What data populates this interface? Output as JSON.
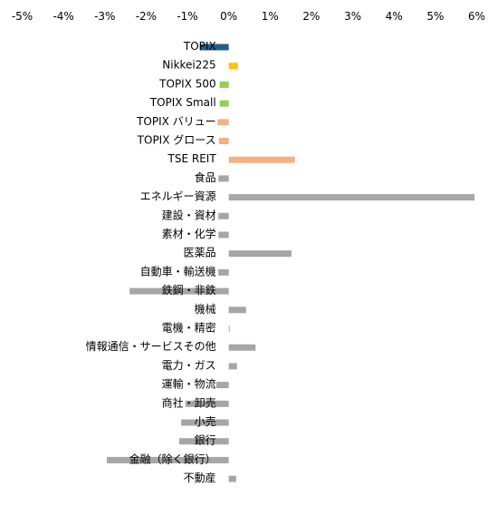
{
  "chart_data": {
    "type": "bar",
    "orientation": "horizontal",
    "title": "",
    "xlabel": "",
    "ylabel": "",
    "xlim": [
      -5,
      6
    ],
    "x_ticks": [
      "-5%",
      "-4%",
      "-3%",
      "-2%",
      "-1%",
      "0%",
      "1%",
      "2%",
      "3%",
      "4%",
      "5%",
      "6%"
    ],
    "x_tick_values": [
      -5,
      -4,
      -3,
      -2,
      -1,
      0,
      1,
      2,
      3,
      4,
      5,
      6
    ],
    "x_axis_position": "top",
    "grid": false,
    "legend": "none",
    "categories": [
      "TOPIX",
      "Nikkei225",
      "TOPIX 500",
      "TOPIX Small",
      "TOPIX バリュー",
      "TOPIX グロース",
      "TSE REIT",
      "食品",
      "エネルギー資源",
      "建設・資材",
      "素材・化学",
      "医薬品",
      "自動車・輸送機",
      "鉄鋼・非鉄",
      "機械",
      "電機・精密",
      "情報通信・サービスその他",
      "電力・ガス",
      "運輸・物流",
      "商社・卸売",
      "小売",
      "銀行",
      "金融（除く銀行）",
      "不動産"
    ],
    "values": [
      -0.7,
      0.22,
      -0.22,
      -0.22,
      -0.27,
      -0.24,
      1.6,
      -0.25,
      5.95,
      -0.25,
      -0.25,
      1.52,
      -0.25,
      -2.4,
      0.42,
      0.02,
      0.65,
      0.2,
      -0.3,
      -1.05,
      -1.15,
      -1.2,
      -2.95,
      0.18
    ],
    "colors": [
      "#1f5f8b",
      "#ffc000",
      "#92d050",
      "#92d050",
      "#f4b183",
      "#f4b183",
      "#f4b183",
      "#a6a6a6",
      "#a6a6a6",
      "#a6a6a6",
      "#a6a6a6",
      "#a6a6a6",
      "#a6a6a6",
      "#a6a6a6",
      "#a6a6a6",
      "#a6a6a6",
      "#a6a6a6",
      "#a6a6a6",
      "#a6a6a6",
      "#a6a6a6",
      "#a6a6a6",
      "#a6a6a6",
      "#a6a6a6",
      "#a6a6a6"
    ]
  }
}
